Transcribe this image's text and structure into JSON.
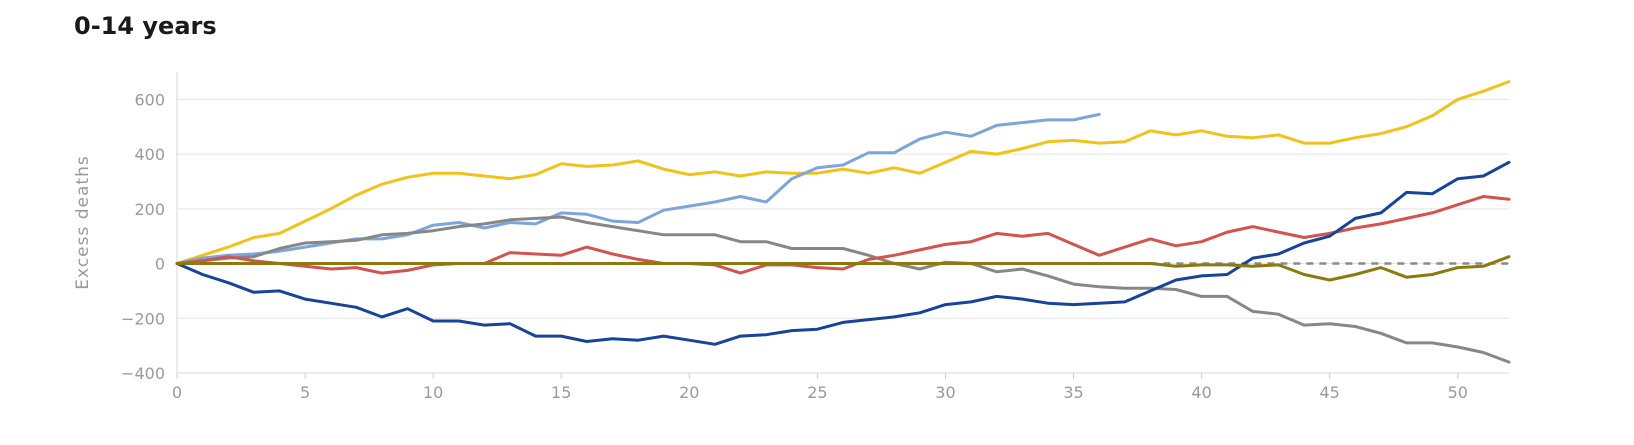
{
  "chart_data": {
    "type": "line",
    "title": "0-14 years",
    "xlabel": "",
    "ylabel": "Excess deaths",
    "xlim": [
      0,
      52
    ],
    "ylim": [
      -400,
      700
    ],
    "x_ticks": [
      "0",
      "5",
      "10",
      "15",
      "20",
      "25",
      "30",
      "35",
      "40",
      "45",
      "50"
    ],
    "y_ticks": [
      "600",
      "400",
      "200",
      "0",
      "−200",
      "−400"
    ],
    "grid": true,
    "baseline": {
      "start_x": 38,
      "end_x": 52,
      "y": 0
    },
    "series": [
      {
        "color": "#f0c21a",
        "start_week": 0,
        "values": [
          0,
          30,
          60,
          95,
          110,
          155,
          200,
          250,
          290,
          315,
          330,
          330,
          320,
          310,
          325,
          365,
          355,
          360,
          375,
          345,
          325,
          335,
          320,
          335,
          330,
          330,
          345,
          330,
          350,
          330,
          370,
          410,
          400,
          420,
          445,
          450,
          440,
          445,
          485,
          470,
          485,
          465,
          460,
          470,
          440,
          440,
          460,
          475,
          500,
          540,
          600,
          630,
          665
        ]
      },
      {
        "color": "#7aa6dc",
        "start_week": 0,
        "values": [
          0,
          20,
          30,
          35,
          45,
          60,
          75,
          90,
          90,
          105,
          140,
          150,
          130,
          150,
          145,
          185,
          180,
          155,
          150,
          195,
          210,
          225,
          245,
          225,
          310,
          350,
          360,
          405,
          405,
          455,
          480,
          465,
          505,
          515,
          525,
          525,
          545
        ]
      },
      {
        "color": "#878787",
        "start_week": 0,
        "values": [
          0,
          10,
          20,
          25,
          55,
          75,
          80,
          85,
          105,
          110,
          120,
          135,
          145,
          160,
          165,
          170,
          150,
          135,
          120,
          105,
          105,
          105,
          80,
          80,
          55,
          55,
          55,
          30,
          0,
          -20,
          5,
          0,
          -30,
          -20,
          -45,
          -75,
          -85,
          -90,
          -90,
          -95,
          -120,
          -120,
          -175,
          -185,
          -225,
          -220,
          -230,
          -255,
          -290,
          -290,
          -305,
          -325,
          -360
        ]
      },
      {
        "color": "#d25350",
        "start_week": 0,
        "values": [
          0,
          10,
          25,
          10,
          0,
          -10,
          -20,
          -15,
          -35,
          -25,
          -5,
          0,
          0,
          40,
          35,
          30,
          60,
          35,
          15,
          0,
          0,
          -5,
          -35,
          -5,
          -5,
          -15,
          -20,
          15,
          30,
          50,
          70,
          80,
          110,
          100,
          110,
          70,
          30,
          60,
          90,
          65,
          80,
          115,
          135,
          115,
          95,
          110,
          130,
          145,
          165,
          185,
          215,
          245,
          235
        ]
      },
      {
        "color": "#17449a",
        "start_week": 0,
        "values": [
          0,
          -40,
          -70,
          -105,
          -100,
          -130,
          -145,
          -160,
          -195,
          -165,
          -210,
          -210,
          -225,
          -220,
          -265,
          -265,
          -285,
          -275,
          -280,
          -265,
          -280,
          -295,
          -265,
          -260,
          -245,
          -240,
          -215,
          -205,
          -195,
          -180,
          -150,
          -140,
          -120,
          -130,
          -145,
          -150,
          -145,
          -140,
          -100,
          -60,
          -45,
          -40,
          20,
          35,
          75,
          100,
          165,
          185,
          260,
          255,
          310,
          320,
          370
        ]
      },
      {
        "color": "#8c7a10",
        "start_week": 0,
        "values": [
          0,
          0,
          0,
          0,
          0,
          0,
          0,
          0,
          0,
          0,
          0,
          0,
          0,
          0,
          0,
          0,
          0,
          0,
          0,
          0,
          0,
          0,
          0,
          0,
          0,
          0,
          0,
          0,
          0,
          0,
          0,
          0,
          0,
          0,
          0,
          0,
          0,
          0,
          0,
          -10,
          -5,
          -5,
          -10,
          -5,
          -40,
          -60,
          -40,
          -15,
          -50,
          -40,
          -15,
          -10,
          25
        ]
      }
    ]
  }
}
